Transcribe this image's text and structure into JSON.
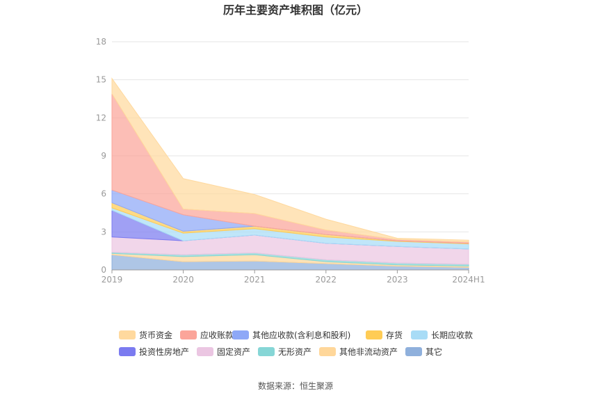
{
  "chart_data": {
    "type": "area",
    "stacked": true,
    "title": "历年主要资产堆积图（亿元）",
    "x": [
      "2019",
      "2020",
      "2021",
      "2022",
      "2023",
      "2024H1"
    ],
    "ylim": [
      0,
      18
    ],
    "yticks": [
      "0",
      "3",
      "6",
      "9",
      "12",
      "15",
      "18"
    ],
    "grid": true,
    "legend_position": "bottom",
    "series": [
      {
        "name": "其它",
        "color": "#8fb0dc",
        "values": [
          1.2,
          0.65,
          0.7,
          0.5,
          0.3,
          0.2
        ]
      },
      {
        "name": "其他非流动资产",
        "color": "#ffd79a",
        "values": [
          0.1,
          0.4,
          0.5,
          0.15,
          0.1,
          0.1
        ]
      },
      {
        "name": "无形资产",
        "color": "#86d6d6",
        "values": [
          0.1,
          0.15,
          0.15,
          0.15,
          0.15,
          0.15
        ]
      },
      {
        "name": "固定资产",
        "color": "#ebc6e2",
        "values": [
          1.2,
          1.1,
          1.4,
          1.3,
          1.3,
          1.2
        ]
      },
      {
        "name": "投资性房地产",
        "color": "#7b7bf0",
        "values": [
          2.1,
          0.0,
          0.0,
          0.0,
          0.0,
          0.0
        ]
      },
      {
        "name": "长期应收款",
        "color": "#a8dcf6",
        "values": [
          0.2,
          0.6,
          0.5,
          0.5,
          0.4,
          0.4
        ]
      },
      {
        "name": "存货",
        "color": "#ffcc55",
        "values": [
          0.4,
          0.15,
          0.2,
          0.2,
          0.05,
          0.05
        ]
      },
      {
        "name": "其他应收款(含利息和股利)",
        "color": "#8ea8f7",
        "values": [
          1.0,
          1.3,
          0.0,
          0.0,
          0.0,
          0.0
        ]
      },
      {
        "name": "应收账款",
        "color": "#fba59a",
        "values": [
          7.6,
          0.45,
          1.0,
          0.35,
          0.1,
          0.1
        ]
      },
      {
        "name": "货币资金",
        "color": "#ffd99e",
        "values": [
          1.2,
          2.4,
          1.5,
          0.85,
          0.1,
          0.15
        ]
      }
    ],
    "legend_order": [
      "货币资金",
      "应收账款",
      "其他应收款(含利息和股利)",
      "存货",
      "长期应收款",
      "投资性房地产",
      "固定资产",
      "无形资产",
      "其他非流动资产",
      "其它"
    ]
  },
  "source_text": "数据来源：恒生聚源"
}
